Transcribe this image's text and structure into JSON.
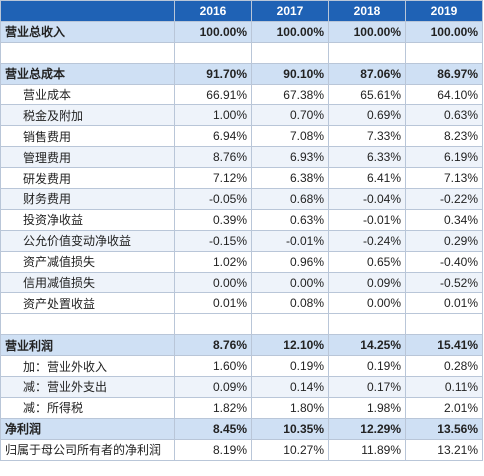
{
  "header": {
    "corner": "",
    "years": [
      "2016",
      "2017",
      "2018",
      "2019"
    ]
  },
  "rows": [
    {
      "label": "营业总收入",
      "values": [
        "100.00%",
        "100.00%",
        "100.00%",
        "100.00%"
      ]
    },
    {
      "label": "",
      "values": [
        "",
        "",
        "",
        ""
      ]
    },
    {
      "label": "营业总成本",
      "values": [
        "91.70%",
        "90.10%",
        "87.06%",
        "86.97%"
      ]
    },
    {
      "label": "营业成本",
      "values": [
        "66.91%",
        "67.38%",
        "65.61%",
        "64.10%"
      ]
    },
    {
      "label": "税金及附加",
      "values": [
        "1.00%",
        "0.70%",
        "0.69%",
        "0.63%"
      ]
    },
    {
      "label": "销售费用",
      "values": [
        "6.94%",
        "7.08%",
        "7.33%",
        "8.23%"
      ]
    },
    {
      "label": "管理费用",
      "values": [
        "8.76%",
        "6.93%",
        "6.33%",
        "6.19%"
      ]
    },
    {
      "label": "研发费用",
      "values": [
        "7.12%",
        "6.38%",
        "6.41%",
        "7.13%"
      ]
    },
    {
      "label": "财务费用",
      "values": [
        "-0.05%",
        "0.68%",
        "-0.04%",
        "-0.22%"
      ]
    },
    {
      "label": "投资净收益",
      "values": [
        "0.39%",
        "0.63%",
        "-0.01%",
        "0.34%"
      ]
    },
    {
      "label": "公允价值变动净收益",
      "values": [
        "-0.15%",
        "-0.01%",
        "-0.24%",
        "0.29%"
      ]
    },
    {
      "label": "资产减值损失",
      "values": [
        "1.02%",
        "0.96%",
        "0.65%",
        "-0.40%"
      ]
    },
    {
      "label": "信用减值损失",
      "values": [
        "0.00%",
        "0.00%",
        "0.09%",
        "-0.52%"
      ]
    },
    {
      "label": "资产处置收益",
      "values": [
        "0.01%",
        "0.08%",
        "0.00%",
        "0.01%"
      ]
    },
    {
      "label": "",
      "values": [
        "",
        "",
        "",
        ""
      ]
    },
    {
      "label": "营业利润",
      "values": [
        "8.76%",
        "12.10%",
        "14.25%",
        "15.41%"
      ]
    },
    {
      "label": "加：营业外收入",
      "values": [
        "1.60%",
        "0.19%",
        "0.19%",
        "0.28%"
      ]
    },
    {
      "label": "减：营业外支出",
      "values": [
        "0.09%",
        "0.14%",
        "0.17%",
        "0.11%"
      ]
    },
    {
      "label": "减：所得税",
      "values": [
        "1.82%",
        "1.80%",
        "1.98%",
        "2.01%"
      ]
    },
    {
      "label": "净利润",
      "values": [
        "8.45%",
        "10.35%",
        "12.29%",
        "13.56%"
      ]
    },
    {
      "label": "归属于母公司所有者的净利润",
      "values": [
        "8.19%",
        "10.27%",
        "11.89%",
        "13.21%"
      ]
    }
  ]
}
